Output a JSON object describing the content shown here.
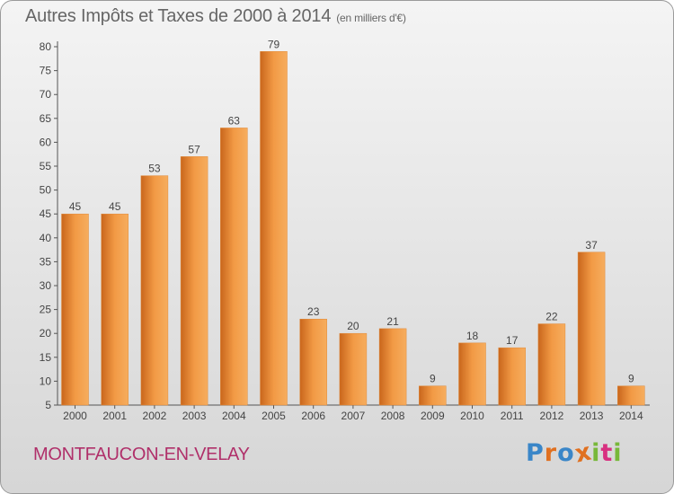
{
  "chart_data": {
    "type": "bar",
    "title": "Autres Impôts et Taxes de 2000 à 2014",
    "subtitle": "(en milliers d'€)",
    "categories": [
      "2000",
      "2001",
      "2002",
      "2003",
      "2004",
      "2005",
      "2006",
      "2007",
      "2008",
      "2009",
      "2010",
      "2011",
      "2012",
      "2013",
      "2014"
    ],
    "values": [
      45,
      45,
      53,
      57,
      63,
      79,
      23,
      20,
      21,
      9,
      18,
      17,
      22,
      37,
      9
    ],
    "ylim": [
      5,
      80
    ],
    "yticks": [
      5,
      10,
      15,
      20,
      25,
      30,
      35,
      40,
      45,
      50,
      55,
      60,
      65,
      70,
      75,
      80
    ],
    "grid": false,
    "bar_color": "#f0963f"
  },
  "footer": {
    "commune": "MONTFAUCON-EN-VELAY",
    "brand": "Proxiti",
    "brand_colors": [
      "#3a86c8",
      "#e07020",
      "#3a86c8",
      "#e07020",
      "#78b83a",
      "#d83080",
      "#78b83a"
    ]
  }
}
